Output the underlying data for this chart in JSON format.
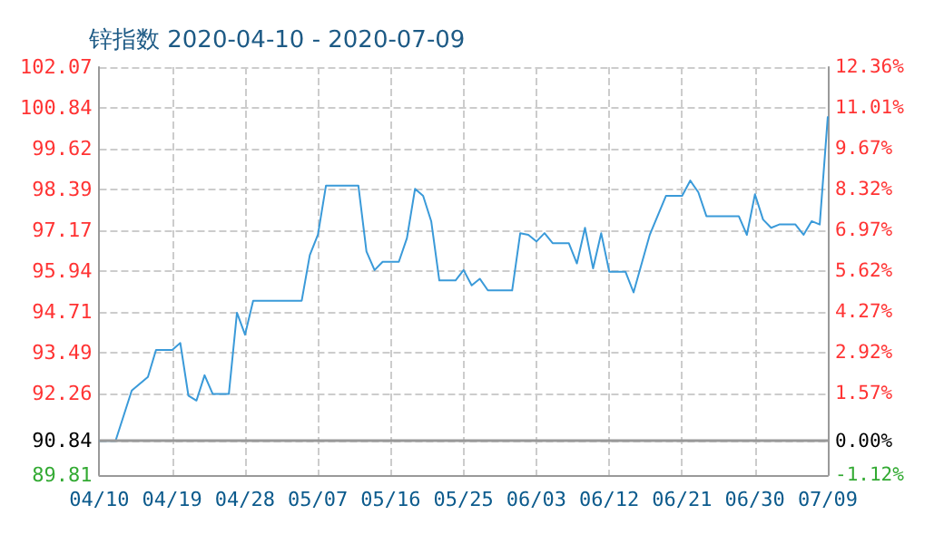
{
  "chart_data": {
    "type": "line",
    "title": "锌指数 2020-04-10 - 2020-07-09",
    "x": [
      "2020-04-10",
      "2020-04-12",
      "2020-04-14",
      "2020-04-16",
      "2020-04-17",
      "2020-04-19",
      "2020-04-20",
      "2020-04-21",
      "2020-04-22",
      "2020-04-23",
      "2020-04-24",
      "2020-04-26",
      "2020-04-27",
      "2020-04-28",
      "2020-04-29",
      "2020-05-05",
      "2020-05-06",
      "2020-05-07",
      "2020-05-08",
      "2020-05-11",
      "2020-05-12",
      "2020-05-13",
      "2020-05-14",
      "2020-05-15",
      "2020-05-17",
      "2020-05-18",
      "2020-05-19",
      "2020-05-20",
      "2020-05-21",
      "2020-05-22",
      "2020-05-24",
      "2020-05-25",
      "2020-05-26",
      "2020-05-27",
      "2020-05-28",
      "2020-05-31",
      "2020-06-01",
      "2020-06-02",
      "2020-06-03",
      "2020-06-04",
      "2020-06-05",
      "2020-06-07",
      "2020-06-08",
      "2020-06-09",
      "2020-06-10",
      "2020-06-11",
      "2020-06-12",
      "2020-06-14",
      "2020-06-15",
      "2020-06-17",
      "2020-06-19",
      "2020-06-21",
      "2020-06-22",
      "2020-06-23",
      "2020-06-24",
      "2020-06-28",
      "2020-06-29",
      "2020-06-30",
      "2020-07-01",
      "2020-07-02",
      "2020-07-03",
      "2020-07-05",
      "2020-07-06",
      "2020-07-07",
      "2020-07-08",
      "2020-07-09"
    ],
    "series": [
      {
        "color": "#3a9ad9",
        "values": [
          90.84,
          90.84,
          92.35,
          92.76,
          93.57,
          93.57,
          93.78,
          92.2,
          92.05,
          92.81,
          92.25,
          92.25,
          94.69,
          94.03,
          95.05,
          95.05,
          96.42,
          97.03,
          98.51,
          98.51,
          98.51,
          96.53,
          95.97,
          96.22,
          96.22,
          96.93,
          98.41,
          98.2,
          97.44,
          95.66,
          95.66,
          95.97,
          95.51,
          95.71,
          95.36,
          95.36,
          97.08,
          97.03,
          96.83,
          97.08,
          96.78,
          96.78,
          96.17,
          97.24,
          96.02,
          97.08,
          95.92,
          95.92,
          95.3,
          97.03,
          98.2,
          98.2,
          98.66,
          98.31,
          97.59,
          97.59,
          97.03,
          98.25,
          97.49,
          97.24,
          97.34,
          97.34,
          97.03,
          97.44,
          97.34,
          100.59
        ]
      }
    ],
    "xlim": [
      "2020-04-10",
      "2020-07-09"
    ],
    "xticks": [
      {
        "value": "2020-04-10",
        "label": "04/10"
      },
      {
        "value": "2020-04-19",
        "label": "04/19"
      },
      {
        "value": "2020-04-28",
        "label": "04/28"
      },
      {
        "value": "2020-05-07",
        "label": "05/07"
      },
      {
        "value": "2020-05-16",
        "label": "05/16"
      },
      {
        "value": "2020-05-25",
        "label": "05/25"
      },
      {
        "value": "2020-06-03",
        "label": "06/03"
      },
      {
        "value": "2020-06-12",
        "label": "06/12"
      },
      {
        "value": "2020-06-21",
        "label": "06/21"
      },
      {
        "value": "2020-06-30",
        "label": "06/30"
      },
      {
        "value": "2020-07-09",
        "label": "07/09"
      }
    ],
    "ylim": [
      89.81,
      102.07
    ],
    "yticks": [
      89.81,
      90.84,
      92.26,
      93.49,
      94.71,
      95.94,
      97.17,
      98.39,
      99.62,
      100.84,
      102.07
    ],
    "y2lim": [
      -1.12,
      12.36
    ],
    "y2ticks": [
      {
        "value": -1.12,
        "label": "-1.12%"
      },
      {
        "value": 0,
        "label": "0.00%"
      },
      {
        "value": 1.57,
        "label": "1.57%"
      },
      {
        "value": 2.92,
        "label": "2.92%"
      },
      {
        "value": 4.27,
        "label": "4.27%"
      },
      {
        "value": 5.62,
        "label": "5.62%"
      },
      {
        "value": 6.97,
        "label": "6.97%"
      },
      {
        "value": 8.32,
        "label": "8.32%"
      },
      {
        "value": 9.67,
        "label": "9.67%"
      },
      {
        "value": 11.01,
        "label": "11.01%"
      },
      {
        "value": 12.36,
        "label": "12.36%"
      }
    ],
    "ref_lines": [
      {
        "axis": "y",
        "value": 90.84,
        "color": "#999999"
      }
    ],
    "grid": true,
    "marker": "none",
    "line_style": "solid"
  }
}
